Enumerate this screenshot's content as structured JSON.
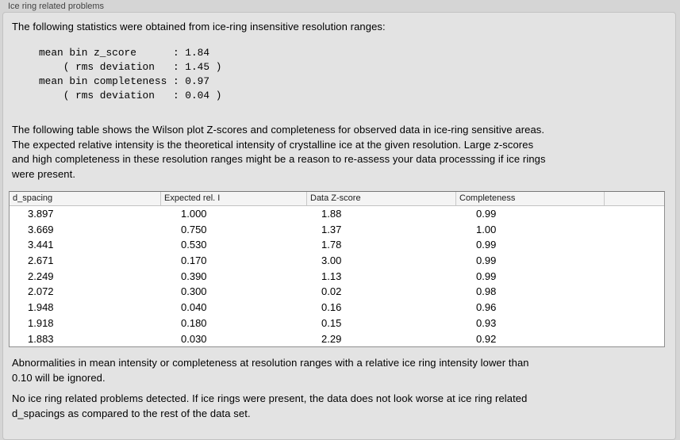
{
  "colors": {
    "window_bg": "#d5d5d5",
    "panel_bg": "#e3e3e3",
    "table_header_bg": "#f4f4f4",
    "table_bg": "#ffffff"
  },
  "panel": {
    "title": "Ice ring related problems",
    "intro_text": "The following statistics were obtained from ice-ring insensitive resolution ranges:",
    "stats_block": "mean bin z_score      : 1.84\n    ( rms deviation   : 1.45 )\nmean bin completeness : 0.97\n    ( rms deviation   : 0.04 )",
    "table_intro": "The following table shows the Wilson plot Z-scores and completeness for observed data in ice-ring sensitive areas.\nThe expected relative intensity is the theoretical intensity of crystalline ice at the given resolution. Large z-scores\nand high completeness in these resolution ranges might be a reason to re-assess your data processsing if ice rings\nwere present.",
    "table": {
      "columns": [
        "d_spacing",
        "Expected rel. I",
        "Data Z-score",
        "Completeness"
      ],
      "rows": [
        [
          "3.897",
          "1.000",
          "1.88",
          "0.99"
        ],
        [
          "3.669",
          "0.750",
          "1.37",
          "1.00"
        ],
        [
          "3.441",
          "0.530",
          "1.78",
          "0.99"
        ],
        [
          "2.671",
          "0.170",
          "3.00",
          "0.99"
        ],
        [
          "2.249",
          "0.390",
          "1.13",
          "0.99"
        ],
        [
          "2.072",
          "0.300",
          "0.02",
          "0.98"
        ],
        [
          "1.948",
          "0.040",
          "0.16",
          "0.96"
        ],
        [
          "1.918",
          "0.180",
          "0.15",
          "0.93"
        ],
        [
          "1.883",
          "0.030",
          "2.29",
          "0.92"
        ]
      ]
    },
    "note_text": "Abnormalities in mean intensity or completeness at resolution ranges with a relative ice ring intensity lower than\n0.10 will be ignored.",
    "conclusion_text": "No ice ring related problems detected. If ice rings were present, the data does not look worse at ice ring related\nd_spacings as compared to the rest of the data set."
  }
}
